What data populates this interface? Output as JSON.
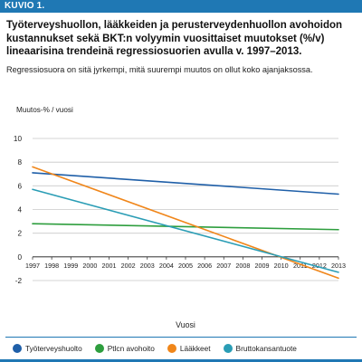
{
  "figure": {
    "label": "KUVIO 1.",
    "title": "Työterveyshuollon, lääkkeiden ja perusterveydenhuollon avohoidon kustannukset sekä BKT:n volyymin vuosittaiset muutokset (%/v) lineaarisina trendeinä regressiosuorien avulla v. 1997–2013.",
    "subtitle": "Regressiosuora on sitä jyrkempi, mitä suurempi muutos on ollut koko ajanjaksossa."
  },
  "chart_data": {
    "type": "line",
    "title": "",
    "ylabel": "Muutos-% / vuosi",
    "xlabel": "Vuosi",
    "x": [
      "1997",
      "1998",
      "1999",
      "2000",
      "2001",
      "2002",
      "2003",
      "2004",
      "2005",
      "2006",
      "2007",
      "2008",
      "2009",
      "2010",
      "2011",
      "2012",
      "2013"
    ],
    "ylim": [
      -2,
      10
    ],
    "yticks": [
      -2,
      0,
      2,
      4,
      6,
      8,
      10
    ],
    "grid": "horizontal",
    "legend_position": "bottom",
    "series": [
      {
        "name": "Työterveyshuolto",
        "color": "#1f5fa8",
        "start": {
          "x": "1997",
          "y": 7.1
        },
        "end": {
          "x": "2013",
          "y": 5.3
        }
      },
      {
        "name": "Ptlcn avohoito",
        "color": "#2e9e3e",
        "start": {
          "x": "1997",
          "y": 2.8
        },
        "end": {
          "x": "2013",
          "y": 2.3
        }
      },
      {
        "name": "Lääkkeet",
        "color": "#f0861a",
        "start": {
          "x": "1997",
          "y": 7.6
        },
        "end": {
          "x": "2013",
          "y": -1.8
        }
      },
      {
        "name": "Bruttokansantuote",
        "color": "#2a9db5",
        "start": {
          "x": "1997",
          "y": 5.7
        },
        "end": {
          "x": "2013",
          "y": -1.3
        }
      }
    ]
  }
}
